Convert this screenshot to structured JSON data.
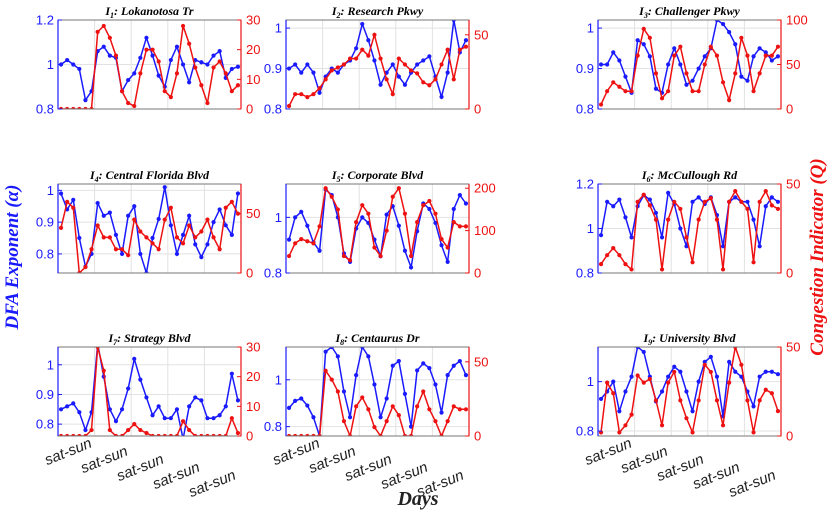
{
  "figure": {
    "xlabel": "Days",
    "ylabel_left": "DFA Exponent (α)",
    "ylabel_right": "Congestion Indicator (Q)",
    "colors": {
      "alpha": "#1a1aff",
      "q": "#ee1111",
      "grid": "#e2e2e2",
      "frame": "#777777"
    }
  },
  "chart_data": [
    {
      "type": "line",
      "title_main": "I",
      "title_sub": "1",
      "title_rest": ": Lokanotosa Tr",
      "xlim": [
        0,
        30
      ],
      "ylim_left": [
        0.8,
        1.2
      ],
      "ylim_right": [
        0,
        30
      ],
      "yticks_left": [
        "0.8",
        "1",
        "1.2"
      ],
      "yticks_right": [
        "0",
        "10",
        "20",
        "30"
      ],
      "xticklabels": [],
      "x": [
        0,
        1,
        2,
        3,
        4,
        5,
        6,
        7,
        8,
        9,
        10,
        11,
        12,
        13,
        14,
        15,
        16,
        17,
        18,
        19,
        20,
        21,
        22,
        23,
        24,
        25,
        26,
        27,
        28,
        29
      ],
      "series": [
        {
          "axis": "left",
          "values": [
            1.0,
            1.02,
            1.0,
            0.98,
            0.84,
            0.88,
            1.06,
            1.08,
            1.04,
            1.03,
            0.88,
            0.93,
            0.96,
            1.03,
            1.12,
            1.04,
            0.95,
            0.9,
            1.02,
            1.08,
            1.0,
            0.92,
            1.02,
            1.01,
            1.0,
            1.04,
            1.06,
            0.94,
            0.98,
            0.99
          ]
        },
        {
          "axis": "right",
          "values": [
            0,
            0,
            0,
            0,
            0,
            0,
            26,
            28,
            24,
            18,
            6,
            2,
            1,
            12,
            20,
            20,
            16,
            6,
            4,
            12,
            28,
            22,
            14,
            8,
            2,
            14,
            16,
            12,
            6,
            8
          ]
        }
      ]
    },
    {
      "type": "line",
      "title_main": "I",
      "title_sub": "2",
      "title_rest": ": Research Pkwy",
      "xlim": [
        0,
        30
      ],
      "ylim_left": [
        0.8,
        1.02
      ],
      "ylim_right": [
        0,
        60
      ],
      "yticks_left": [
        "0.8",
        "0.9",
        "1"
      ],
      "yticks_right": [
        "0",
        "50"
      ],
      "xticklabels": [],
      "x": [
        0,
        1,
        2,
        3,
        4,
        5,
        6,
        7,
        8,
        9,
        10,
        11,
        12,
        13,
        14,
        15,
        16,
        17,
        18,
        19,
        20,
        21,
        22,
        23,
        24,
        25,
        26,
        27,
        28,
        29
      ],
      "series": [
        {
          "axis": "left",
          "values": [
            0.9,
            0.91,
            0.89,
            0.91,
            0.89,
            0.84,
            0.88,
            0.9,
            0.89,
            0.91,
            0.92,
            0.95,
            1.01,
            0.97,
            0.92,
            0.86,
            0.89,
            0.91,
            0.88,
            0.86,
            0.89,
            0.91,
            0.92,
            0.93,
            0.88,
            0.83,
            0.89,
            1.02,
            0.94,
            0.97
          ]
        },
        {
          "axis": "right",
          "values": [
            2,
            10,
            10,
            8,
            10,
            14,
            20,
            26,
            28,
            30,
            34,
            34,
            40,
            36,
            50,
            34,
            20,
            10,
            34,
            30,
            26,
            24,
            18,
            16,
            20,
            30,
            40,
            20,
            40,
            42
          ]
        }
      ]
    },
    {
      "type": "line",
      "title_main": "I",
      "title_sub": "3",
      "title_rest": ": Challenger Pkwy",
      "xlim": [
        0,
        30
      ],
      "ylim_left": [
        0.8,
        1.02
      ],
      "ylim_right": [
        0,
        100
      ],
      "yticks_left": [
        "0.8",
        "0.9",
        "1"
      ],
      "yticks_right": [
        "0",
        "50",
        "100"
      ],
      "xticklabels": [],
      "x": [
        0,
        1,
        2,
        3,
        4,
        5,
        6,
        7,
        8,
        9,
        10,
        11,
        12,
        13,
        14,
        15,
        16,
        17,
        18,
        19,
        20,
        21,
        22,
        23,
        24,
        25,
        26,
        27,
        28,
        29
      ],
      "series": [
        {
          "axis": "left",
          "values": [
            0.91,
            0.91,
            0.94,
            0.92,
            0.88,
            0.84,
            0.97,
            0.96,
            0.93,
            0.85,
            0.84,
            0.91,
            0.95,
            0.91,
            0.86,
            0.87,
            0.9,
            0.93,
            0.95,
            1.02,
            1.01,
            0.99,
            0.96,
            0.88,
            0.87,
            0.93,
            0.95,
            0.94,
            0.92,
            0.93
          ]
        },
        {
          "axis": "right",
          "values": [
            5,
            20,
            30,
            25,
            20,
            20,
            60,
            90,
            80,
            40,
            12,
            20,
            60,
            70,
            40,
            20,
            20,
            50,
            70,
            60,
            30,
            10,
            40,
            80,
            60,
            20,
            40,
            60,
            60,
            70
          ]
        }
      ]
    },
    {
      "type": "line",
      "title_main": "I",
      "title_sub": "4",
      "title_rest": ": Central Florida Blvd",
      "xlim": [
        0,
        30
      ],
      "ylim_left": [
        0.74,
        1.02
      ],
      "ylim_right": [
        0,
        75
      ],
      "yticks_left": [
        "0.8",
        "0.9",
        "1"
      ],
      "yticks_right": [
        "0",
        "50"
      ],
      "xticklabels": [],
      "x": [
        0,
        1,
        2,
        3,
        4,
        5,
        6,
        7,
        8,
        9,
        10,
        11,
        12,
        13,
        14,
        15,
        16,
        17,
        18,
        19,
        20,
        21,
        22,
        23,
        24,
        25,
        26,
        27,
        28,
        29
      ],
      "series": [
        {
          "axis": "left",
          "values": [
            0.99,
            0.94,
            0.97,
            0.85,
            0.76,
            0.8,
            0.96,
            0.92,
            0.93,
            0.86,
            0.8,
            0.92,
            0.95,
            0.8,
            0.74,
            0.85,
            0.91,
            1.01,
            0.89,
            0.8,
            0.86,
            0.92,
            0.83,
            0.79,
            0.83,
            0.9,
            0.94,
            0.89,
            0.86,
            0.99
          ]
        },
        {
          "axis": "right",
          "values": [
            38,
            60,
            55,
            0,
            5,
            20,
            40,
            30,
            30,
            20,
            20,
            15,
            45,
            35,
            30,
            25,
            20,
            45,
            55,
            30,
            25,
            40,
            30,
            35,
            45,
            30,
            20,
            55,
            60,
            50
          ]
        }
      ]
    },
    {
      "type": "line",
      "title_main": "I",
      "title_sub": "5",
      "title_rest": ": Corporate Blvd",
      "xlim": [
        0,
        30
      ],
      "ylim_left": [
        0.8,
        1.12
      ],
      "ylim_right": [
        0,
        210
      ],
      "yticks_left": [
        "0.8",
        "1"
      ],
      "yticks_right": [
        "0",
        "100",
        "200"
      ],
      "xticklabels": [],
      "x": [
        0,
        1,
        2,
        3,
        4,
        5,
        6,
        7,
        8,
        9,
        10,
        11,
        12,
        13,
        14,
        15,
        16,
        17,
        18,
        19,
        20,
        21,
        22,
        23,
        24,
        25,
        26,
        27,
        28,
        29
      ],
      "series": [
        {
          "axis": "left",
          "values": [
            0.92,
            1.0,
            1.02,
            0.97,
            0.91,
            0.88,
            1.1,
            1.08,
            1.0,
            0.87,
            0.84,
            0.96,
            1.0,
            0.98,
            0.92,
            0.86,
            1.01,
            1.04,
            0.97,
            0.88,
            0.82,
            0.95,
            1.05,
            1.03,
            0.98,
            0.9,
            0.84,
            1.03,
            1.08,
            1.05
          ]
        },
        {
          "axis": "right",
          "values": [
            40,
            70,
            80,
            75,
            70,
            110,
            200,
            180,
            150,
            40,
            30,
            120,
            160,
            140,
            60,
            40,
            100,
            180,
            200,
            140,
            40,
            120,
            160,
            170,
            140,
            80,
            60,
            120,
            110,
            110
          ]
        }
      ]
    },
    {
      "type": "line",
      "title_main": "I",
      "title_sub": "6",
      "title_rest": ": McCullough Rd",
      "xlim": [
        0,
        30
      ],
      "ylim_left": [
        0.8,
        1.2
      ],
      "ylim_right": [
        0,
        50
      ],
      "yticks_left": [
        "0.8",
        "1",
        "1.2"
      ],
      "yticks_right": [
        "0",
        "50"
      ],
      "xticklabels": [],
      "x": [
        0,
        1,
        2,
        3,
        4,
        5,
        6,
        7,
        8,
        9,
        10,
        11,
        12,
        13,
        14,
        15,
        16,
        17,
        18,
        19,
        20,
        21,
        22,
        23,
        24,
        25,
        26,
        27,
        28,
        29
      ],
      "series": [
        {
          "axis": "left",
          "values": [
            0.97,
            1.12,
            1.1,
            1.13,
            1.05,
            0.96,
            1.1,
            1.15,
            1.13,
            1.07,
            0.96,
            1.16,
            1.11,
            1.0,
            0.92,
            1.12,
            1.14,
            1.11,
            1.14,
            1.06,
            0.92,
            1.12,
            1.14,
            1.12,
            1.12,
            1.04,
            0.92,
            1.1,
            1.14,
            1.12
          ]
        },
        {
          "axis": "right",
          "values": [
            5,
            10,
            14,
            10,
            5,
            2,
            40,
            44,
            38,
            30,
            2,
            30,
            40,
            36,
            20,
            6,
            30,
            40,
            42,
            30,
            2,
            40,
            46,
            40,
            36,
            6,
            40,
            46,
            38,
            36
          ]
        }
      ]
    },
    {
      "type": "line",
      "title_main": "I",
      "title_sub": "7",
      "title_rest": ": Strategy Blvd",
      "xlim": [
        0,
        30
      ],
      "ylim_left": [
        0.76,
        1.06
      ],
      "ylim_right": [
        0,
        30
      ],
      "yticks_left": [
        "0.8",
        "0.9",
        "1"
      ],
      "yticks_right": [
        "0",
        "10",
        "20",
        "30"
      ],
      "xticklabels": [],
      "x": [
        0,
        1,
        2,
        3,
        4,
        5,
        6,
        7,
        8,
        9,
        10,
        11,
        12,
        13,
        14,
        15,
        16,
        17,
        18,
        19,
        20,
        21,
        22,
        23,
        24,
        25,
        26,
        27,
        28,
        29
      ],
      "series": [
        {
          "axis": "left",
          "values": [
            0.85,
            0.86,
            0.87,
            0.84,
            0.78,
            0.84,
            1.07,
            0.96,
            0.85,
            0.81,
            0.85,
            0.92,
            1.02,
            0.95,
            0.89,
            0.83,
            0.86,
            0.82,
            0.82,
            0.85,
            0.75,
            0.86,
            0.89,
            0.88,
            0.82,
            0.82,
            0.83,
            0.86,
            0.97,
            0.88
          ]
        },
        {
          "axis": "right",
          "values": [
            0,
            0,
            0,
            0,
            0,
            2,
            30,
            22,
            2,
            0,
            0,
            2,
            4,
            2,
            1,
            0,
            0,
            0,
            0,
            0,
            5,
            2,
            0,
            0,
            0,
            0,
            0,
            0,
            6,
            1
          ]
        }
      ]
    },
    {
      "type": "line",
      "title_main": "I",
      "title_sub": "8",
      "title_rest": ": Centaurus Dr",
      "xlim": [
        0,
        30
      ],
      "ylim_left": [
        0.76,
        1.14
      ],
      "ylim_right": [
        0,
        60
      ],
      "yticks_left": [
        "0.8",
        "1"
      ],
      "yticks_right": [
        "0",
        "50"
      ],
      "xticklabels": [],
      "x": [
        0,
        1,
        2,
        3,
        4,
        5,
        6,
        7,
        8,
        9,
        10,
        11,
        12,
        13,
        14,
        15,
        16,
        17,
        18,
        19,
        20,
        21,
        22,
        23,
        24,
        25,
        26,
        27,
        28,
        29
      ],
      "series": [
        {
          "axis": "left",
          "values": [
            0.88,
            0.91,
            0.92,
            0.89,
            0.84,
            0.76,
            1.12,
            1.14,
            1.1,
            0.95,
            0.84,
            1.02,
            1.14,
            1.1,
            0.98,
            0.84,
            0.92,
            1.06,
            1.08,
            0.94,
            0.8,
            1.04,
            1.07,
            1.05,
            0.98,
            0.86,
            1.02,
            1.06,
            1.08,
            1.02
          ]
        },
        {
          "axis": "right",
          "values": [
            0,
            0,
            0,
            0,
            0,
            0,
            44,
            38,
            30,
            10,
            0,
            20,
            26,
            18,
            6,
            0,
            10,
            20,
            14,
            0,
            0,
            20,
            30,
            18,
            10,
            0,
            10,
            20,
            18,
            18
          ]
        }
      ]
    },
    {
      "type": "line",
      "title_main": "I",
      "title_sub": "9",
      "title_rest": ": University Blvd",
      "xlim": [
        0,
        30
      ],
      "ylim_left": [
        0.78,
        1.14
      ],
      "ylim_right": [
        0,
        50
      ],
      "yticks_left": [
        "0.8",
        "1"
      ],
      "yticks_right": [
        "0",
        "50"
      ],
      "xticklabels": [
        "sat-sun",
        "sat-sun",
        "sat-sun",
        "sat-sun",
        "sat-sun"
      ],
      "x": [
        0,
        1,
        2,
        3,
        4,
        5,
        6,
        7,
        8,
        9,
        10,
        11,
        12,
        13,
        14,
        15,
        16,
        17,
        18,
        19,
        20,
        21,
        22,
        23,
        24,
        25,
        26,
        27,
        28,
        29
      ],
      "series": [
        {
          "axis": "left",
          "values": [
            0.93,
            0.96,
            1.0,
            0.88,
            0.96,
            1.02,
            1.14,
            1.12,
            1.02,
            0.92,
            0.96,
            1.02,
            1.06,
            1.04,
            0.96,
            0.88,
            1.0,
            1.08,
            1.1,
            1.02,
            0.86,
            1.08,
            1.04,
            1.02,
            0.96,
            0.9,
            1.02,
            1.04,
            1.04,
            1.03
          ]
        },
        {
          "axis": "right",
          "values": [
            2,
            30,
            24,
            2,
            6,
            12,
            34,
            30,
            32,
            20,
            6,
            30,
            36,
            20,
            10,
            2,
            20,
            40,
            36,
            20,
            6,
            30,
            50,
            40,
            20,
            2,
            20,
            26,
            24,
            14
          ]
        }
      ]
    }
  ]
}
